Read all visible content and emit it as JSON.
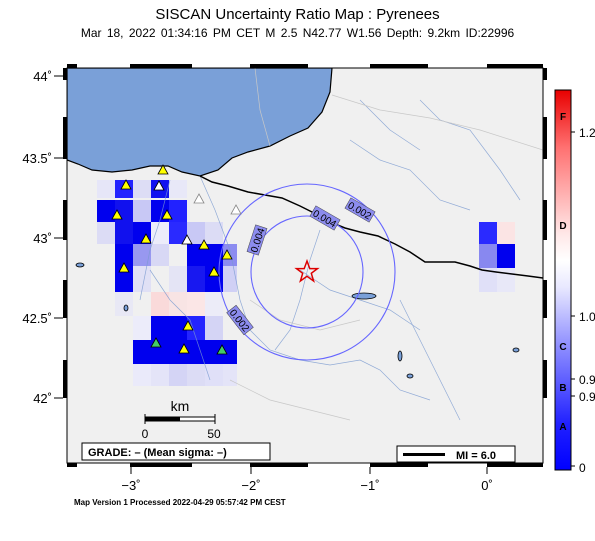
{
  "header": {
    "title": "SISCAN Uncertainty Ratio Map : Pyrenees",
    "subtitle": "Mar 18, 2022 01:34:16 PM CET   M 2.5   N42.77 W1.56   Depth: 9.2km   ID:22996"
  },
  "footer": {
    "version": "Map Version 1 Processed 2022-04-29 05:57:42 PM CEST"
  },
  "axes": {
    "y_labels": [
      "44˚",
      "43.5˚",
      "43˚",
      "42.5˚",
      "42˚"
    ],
    "x_labels": [
      "−3˚",
      "−2˚",
      "−1˚",
      "0˚"
    ]
  },
  "scale_bar": {
    "unit": "km",
    "tick_0": "0",
    "tick_50": "50"
  },
  "grade_box": {
    "text": "GRADE: – (Mean sigma: –)"
  },
  "mi_legend": {
    "text": "MI = 6.0"
  },
  "contours": {
    "labels": [
      "0.002",
      "0.004",
      "0.004",
      "0.002"
    ]
  },
  "colorbar": {
    "values": [
      "1.2",
      "1.0",
      "0.9",
      "0.9",
      "0"
    ],
    "letters": [
      "F",
      "D",
      "C",
      "B",
      "A"
    ]
  },
  "epicenter": {
    "lat": 42.77,
    "lon": -1.56,
    "symbol": "red-star"
  },
  "colors": {
    "sea": "#7aa0d8",
    "land": "#f0f0f0",
    "cell_dark": "#0000ee",
    "cell_mid": "#9a9ef0",
    "station": "#ffff00",
    "station_green": "#44cc66",
    "epicenter": "#dd0000"
  }
}
